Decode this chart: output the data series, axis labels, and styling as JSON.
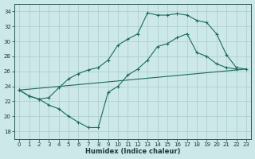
{
  "xlabel": "Humidex (Indice chaleur)",
  "bg_color": "#cce8e8",
  "grid_color": "#b0d0d0",
  "line_color": "#1a6b5a",
  "ylim": [
    17,
    35
  ],
  "xlim": [
    -0.5,
    23.5
  ],
  "yticks": [
    18,
    20,
    22,
    24,
    26,
    28,
    30,
    32,
    34
  ],
  "xticks": [
    0,
    1,
    2,
    3,
    4,
    5,
    6,
    7,
    8,
    9,
    10,
    11,
    12,
    13,
    14,
    15,
    16,
    17,
    18,
    19,
    20,
    21,
    22,
    23
  ],
  "line1_x": [
    0,
    1,
    2,
    3,
    4,
    5,
    6,
    7,
    8,
    9,
    10,
    11,
    12,
    13,
    14,
    15,
    16,
    17,
    18,
    19,
    20,
    21,
    22,
    23
  ],
  "line1_y": [
    23.5,
    22.7,
    22.3,
    21.5,
    21.0,
    20.0,
    19.2,
    18.5,
    18.5,
    23.2,
    24.0,
    25.5,
    26.3,
    27.5,
    29.3,
    29.7,
    30.5,
    31.0,
    28.5,
    28.0,
    27.0,
    26.5,
    26.3,
    null
  ],
  "line2_x": [
    0,
    23
  ],
  "line2_y": [
    23.5,
    26.3
  ],
  "line3_x": [
    0,
    1,
    2,
    3,
    4,
    5,
    6,
    7,
    8,
    9,
    10,
    11,
    12,
    13,
    14,
    15,
    16,
    17,
    18,
    19,
    20,
    21,
    22,
    23
  ],
  "line3_y": [
    23.5,
    22.7,
    22.3,
    22.5,
    23.8,
    25.0,
    25.7,
    26.2,
    26.5,
    27.5,
    29.5,
    30.3,
    31.0,
    33.8,
    33.5,
    33.5,
    33.7,
    33.5,
    32.8,
    32.5,
    31.0,
    28.2,
    26.5,
    26.3
  ],
  "markers_x": [
    0,
    1,
    2,
    3,
    4,
    5,
    6,
    7,
    8,
    9,
    10,
    11,
    12,
    13,
    14,
    15,
    16,
    17,
    18,
    19,
    20,
    21,
    22
  ],
  "markers1_y": [
    23.5,
    22.7,
    22.3,
    21.5,
    21.0,
    20.0,
    19.2,
    18.5,
    18.5,
    23.2,
    24.0,
    25.5,
    26.3,
    27.5,
    29.3,
    29.7,
    30.5,
    31.0,
    28.5,
    28.0,
    27.0,
    26.5,
    26.3
  ],
  "markers3_y": [
    23.5,
    22.7,
    22.3,
    22.5,
    23.8,
    25.0,
    25.7,
    26.2,
    26.5,
    27.5,
    29.5,
    30.3,
    31.0,
    33.8,
    33.5,
    33.5,
    33.7,
    33.5,
    32.8,
    32.5,
    31.0,
    28.2,
    26.5
  ]
}
